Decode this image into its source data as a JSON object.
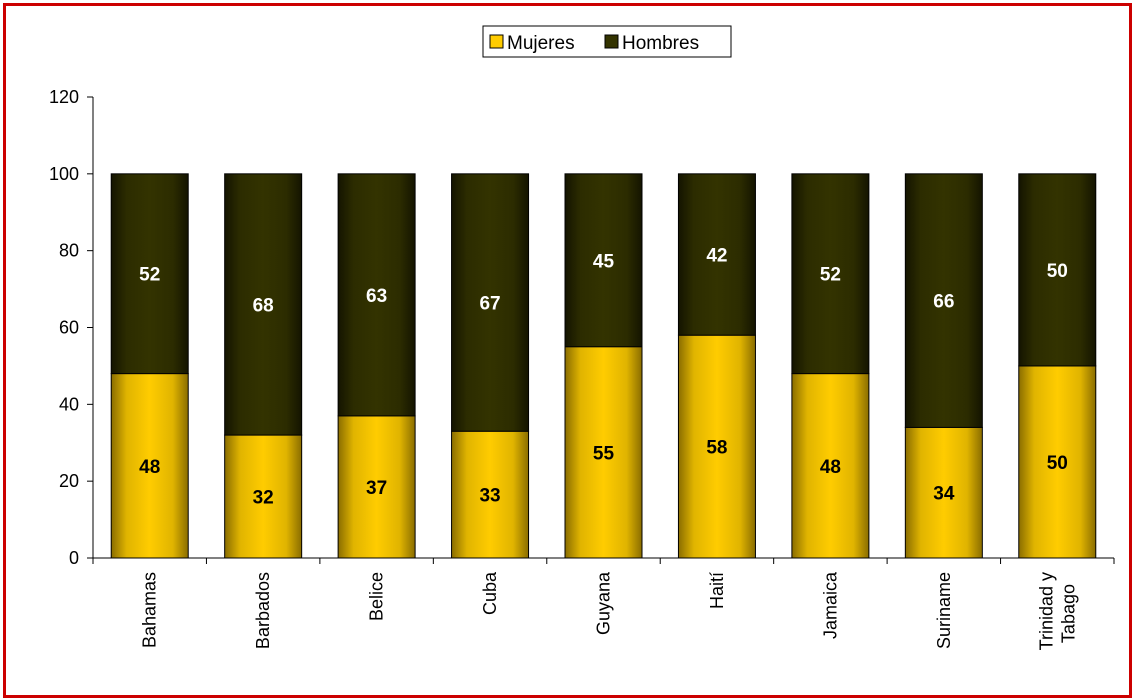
{
  "chart_data": {
    "type": "bar",
    "stacked": true,
    "categories": [
      "Bahamas",
      "Barbados",
      "Belice",
      "Cuba",
      "Guyana",
      "Haití",
      "Jamaica",
      "Suriname",
      "Trinidad y Tabago"
    ],
    "series": [
      {
        "name": "Mujeres",
        "values": [
          48,
          32,
          37,
          33,
          55,
          58,
          48,
          34,
          50
        ],
        "color": "#ffcc00"
      },
      {
        "name": "Hombres",
        "values": [
          52,
          68,
          63,
          67,
          45,
          42,
          52,
          66,
          50
        ],
        "color": "#333300"
      }
    ],
    "ylim": [
      0,
      120
    ],
    "yticks": [
      "0",
      "20",
      "40",
      "60",
      "80",
      "100",
      "120"
    ],
    "legend_position": "top-center",
    "grid": false,
    "frame_color": "#cc0000"
  }
}
